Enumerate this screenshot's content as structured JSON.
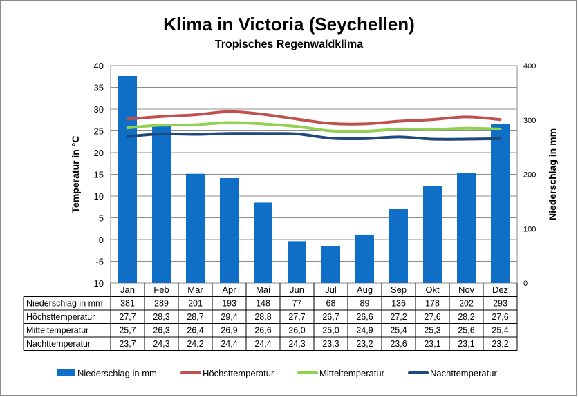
{
  "chart_data": {
    "type": "bar+line",
    "title": "Klima in Victoria (Seychellen)",
    "subtitle": "Tropisches Regenwaldklima",
    "ylabel_left": "Temperatur in °C",
    "ylabel_right": "Niederschlag in mm",
    "ylim_left": [
      -10,
      40
    ],
    "yticks_left": [
      "40",
      "35",
      "30",
      "25",
      "20",
      "15",
      "10",
      "5",
      "0",
      "-5",
      "-10"
    ],
    "ylim_right": [
      0,
      400
    ],
    "yticks_right": [
      "400",
      "300",
      "200",
      "100",
      "0"
    ],
    "grid": true,
    "legend_position": "bottom",
    "categories": [
      "Jan",
      "Feb",
      "Mar",
      "Apr",
      "Mai",
      "Jun",
      "Jul",
      "Aug",
      "Sep",
      "Okt",
      "Nov",
      "Dez"
    ],
    "series": [
      {
        "name": "Niederschlag in mm",
        "type": "bar",
        "axis": "right",
        "color": "#0f6fc6",
        "values": [
          381,
          289,
          201,
          193,
          148,
          77,
          68,
          89,
          136,
          178,
          202,
          293
        ],
        "labels": [
          "381",
          "289",
          "201",
          "193",
          "148",
          "77",
          "68",
          "89",
          "136",
          "178",
          "202",
          "293"
        ]
      },
      {
        "name": "Höchsttemperatur",
        "type": "line",
        "axis": "left",
        "color": "#c0504d",
        "values": [
          27.7,
          28.3,
          28.7,
          29.4,
          28.8,
          27.7,
          26.7,
          26.6,
          27.2,
          27.6,
          28.2,
          27.6
        ],
        "labels": [
          "27,7",
          "28,3",
          "28,7",
          "29,4",
          "28,8",
          "27,7",
          "26,7",
          "26,6",
          "27,2",
          "27,6",
          "28,2",
          "27,6"
        ]
      },
      {
        "name": "Mitteltemperatur",
        "type": "line",
        "axis": "left",
        "color": "#92d050",
        "values": [
          25.7,
          26.3,
          26.4,
          26.9,
          26.6,
          26.0,
          25.0,
          24.9,
          25.4,
          25.3,
          25.6,
          25.4
        ],
        "labels": [
          "25,7",
          "26,3",
          "26,4",
          "26,9",
          "26,6",
          "26,0",
          "25,0",
          "24,9",
          "25,4",
          "25,3",
          "25,6",
          "25,4"
        ]
      },
      {
        "name": "Nachttemperatur",
        "type": "line",
        "axis": "left",
        "color": "#1f497d",
        "values": [
          23.7,
          24.3,
          24.2,
          24.4,
          24.4,
          24.3,
          23.3,
          23.2,
          23.6,
          23.1,
          23.1,
          23.2
        ],
        "labels": [
          "23,7",
          "24,3",
          "24,2",
          "24,4",
          "24,4",
          "24,3",
          "23,3",
          "23,2",
          "23,6",
          "23,1",
          "23,1",
          "23,2"
        ]
      }
    ]
  }
}
